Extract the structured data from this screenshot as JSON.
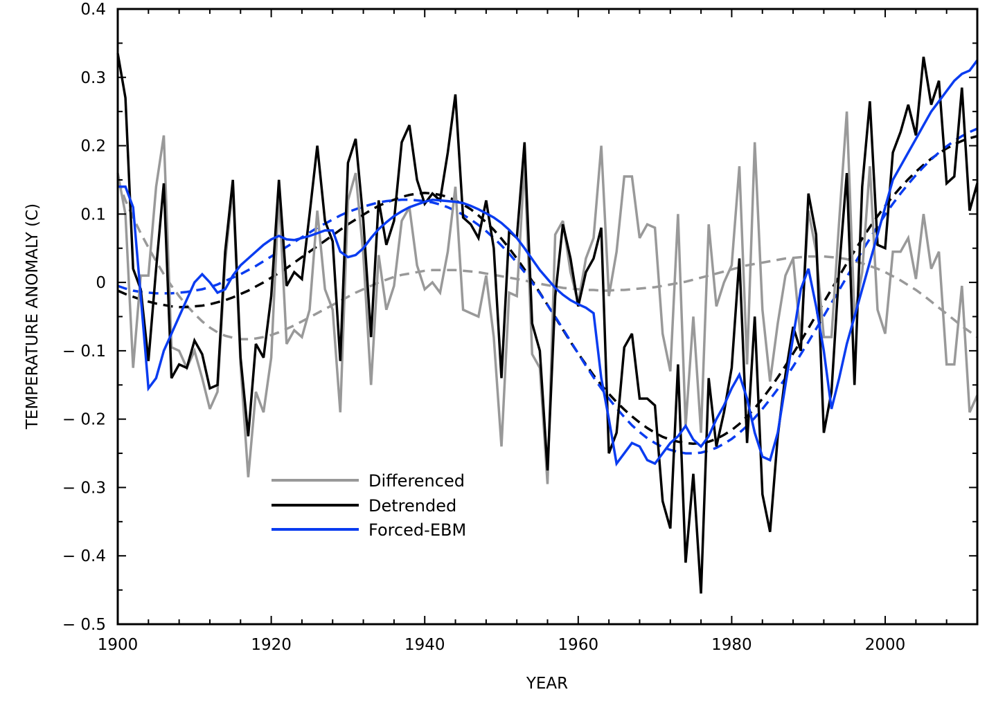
{
  "chart_data": {
    "type": "line",
    "title": "",
    "xlabel": "YEAR",
    "ylabel": "TEMPERATURE ANOMALY (C)",
    "xlim": [
      1900,
      2012
    ],
    "ylim": [
      -0.5,
      0.4
    ],
    "grid": false,
    "legend_position": "lower-left",
    "x_ticks": [
      1900,
      1920,
      1940,
      1960,
      1980,
      2000
    ],
    "x_tick_labels": [
      "1900",
      "1920",
      "1940",
      "1960",
      "1980",
      "2000"
    ],
    "y_ticks": [
      0.4,
      0.3,
      0.2,
      0.1,
      0,
      -0.1,
      -0.2,
      -0.3,
      -0.4,
      -0.5
    ],
    "y_tick_labels": [
      "0.4",
      "0.3",
      "0.2",
      "0.1",
      "0",
      "− 0.1",
      "− 0.2",
      "− 0.3",
      "− 0.4",
      "− 0.5"
    ],
    "x": [
      1900,
      1901,
      1902,
      1903,
      1904,
      1905,
      1906,
      1907,
      1908,
      1909,
      1910,
      1911,
      1912,
      1913,
      1914,
      1915,
      1916,
      1917,
      1918,
      1919,
      1920,
      1921,
      1922,
      1923,
      1924,
      1925,
      1926,
      1927,
      1928,
      1929,
      1930,
      1931,
      1932,
      1933,
      1934,
      1935,
      1936,
      1937,
      1938,
      1939,
      1940,
      1941,
      1942,
      1943,
      1944,
      1945,
      1946,
      1947,
      1948,
      1949,
      1950,
      1951,
      1952,
      1953,
      1954,
      1955,
      1956,
      1957,
      1958,
      1959,
      1960,
      1961,
      1962,
      1963,
      1964,
      1965,
      1966,
      1967,
      1968,
      1969,
      1970,
      1971,
      1972,
      1973,
      1974,
      1975,
      1976,
      1977,
      1978,
      1979,
      1980,
      1981,
      1982,
      1983,
      1984,
      1985,
      1986,
      1987,
      1988,
      1989,
      1990,
      1991,
      1992,
      1993,
      1994,
      1995,
      1996,
      1997,
      1998,
      1999,
      2000,
      2001,
      2002,
      2003,
      2004,
      2005,
      2006,
      2007,
      2008,
      2009,
      2010,
      2011,
      2012
    ],
    "series": [
      {
        "name": "Differenced",
        "color": "#999999",
        "style": "solid",
        "in_legend": true,
        "values": [
          0.16,
          0.1,
          -0.125,
          0.01,
          0.01,
          0.14,
          0.215,
          -0.095,
          -0.1,
          -0.125,
          -0.1,
          -0.14,
          -0.185,
          -0.16,
          0.03,
          0.14,
          -0.12,
          -0.285,
          -0.16,
          -0.19,
          -0.11,
          0.13,
          -0.09,
          -0.07,
          -0.08,
          -0.04,
          0.105,
          -0.01,
          -0.04,
          -0.19,
          0.12,
          0.16,
          0.04,
          -0.15,
          0.04,
          -0.04,
          -0.005,
          0.09,
          0.11,
          0.025,
          -0.01,
          0.0,
          -0.015,
          0.045,
          0.14,
          -0.04,
          -0.045,
          -0.05,
          0.01,
          -0.08,
          -0.24,
          -0.015,
          -0.02,
          0.175,
          -0.105,
          -0.125,
          -0.295,
          0.07,
          0.09,
          0.015,
          -0.03,
          0.035,
          0.065,
          0.2,
          -0.02,
          0.045,
          0.155,
          0.155,
          0.065,
          0.085,
          0.08,
          -0.075,
          -0.13,
          0.1,
          -0.21,
          -0.05,
          -0.22,
          0.085,
          -0.035,
          0.0,
          0.025,
          0.17,
          -0.12,
          0.205,
          -0.04,
          -0.145,
          -0.06,
          0.01,
          0.035,
          -0.085,
          0.105,
          0.045,
          -0.08,
          -0.08,
          0.09,
          0.25,
          -0.05,
          0.015,
          0.17,
          -0.04,
          -0.075,
          0.045,
          0.045,
          0.065,
          0.005,
          0.1,
          0.02,
          0.045,
          -0.12,
          -0.12,
          -0.005,
          -0.19,
          -0.165
        ]
      },
      {
        "name": "Detrended",
        "color": "#000000",
        "style": "solid",
        "in_legend": true,
        "values": [
          0.335,
          0.27,
          0.02,
          -0.01,
          -0.115,
          0.02,
          0.145,
          -0.14,
          -0.12,
          -0.125,
          -0.085,
          -0.105,
          -0.155,
          -0.15,
          0.045,
          0.15,
          -0.11,
          -0.225,
          -0.09,
          -0.11,
          -0.02,
          0.15,
          -0.005,
          0.015,
          0.005,
          0.1,
          0.2,
          0.09,
          0.06,
          -0.115,
          0.175,
          0.21,
          0.09,
          -0.08,
          0.12,
          0.055,
          0.09,
          0.205,
          0.23,
          0.15,
          0.115,
          0.13,
          0.12,
          0.19,
          0.275,
          0.095,
          0.085,
          0.065,
          0.12,
          0.05,
          -0.14,
          0.075,
          0.065,
          0.205,
          -0.06,
          -0.1,
          -0.275,
          -0.02,
          0.085,
          0.035,
          -0.035,
          0.015,
          0.035,
          0.08,
          -0.25,
          -0.22,
          -0.095,
          -0.075,
          -0.17,
          -0.17,
          -0.18,
          -0.32,
          -0.36,
          -0.12,
          -0.41,
          -0.28,
          -0.455,
          -0.14,
          -0.24,
          -0.19,
          -0.125,
          0.035,
          -0.235,
          -0.05,
          -0.31,
          -0.365,
          -0.225,
          -0.135,
          -0.065,
          -0.1,
          0.13,
          0.07,
          -0.22,
          -0.16,
          0.02,
          0.16,
          -0.15,
          0.14,
          0.265,
          0.055,
          0.05,
          0.19,
          0.22,
          0.26,
          0.215,
          0.33,
          0.26,
          0.295,
          0.145,
          0.155,
          0.285,
          0.105,
          0.145
        ]
      },
      {
        "name": "Forced-EBM",
        "color": "#0a3cf0",
        "style": "solid",
        "in_legend": true,
        "values": [
          0.14,
          0.14,
          0.11,
          -0.02,
          -0.155,
          -0.14,
          -0.1,
          -0.075,
          -0.05,
          -0.025,
          0.0,
          0.012,
          0.0,
          -0.015,
          -0.01,
          0.01,
          0.025,
          0.035,
          0.045,
          0.055,
          0.063,
          0.068,
          0.063,
          0.062,
          0.065,
          0.068,
          0.072,
          0.076,
          0.076,
          0.045,
          0.037,
          0.04,
          0.05,
          0.065,
          0.078,
          0.088,
          0.097,
          0.104,
          0.11,
          0.114,
          0.118,
          0.121,
          0.12,
          0.119,
          0.118,
          0.116,
          0.112,
          0.107,
          0.101,
          0.095,
          0.087,
          0.077,
          0.065,
          0.05,
          0.034,
          0.018,
          0.005,
          -0.008,
          -0.018,
          -0.026,
          -0.032,
          -0.037,
          -0.045,
          -0.14,
          -0.2,
          -0.265,
          -0.25,
          -0.235,
          -0.24,
          -0.26,
          -0.265,
          -0.25,
          -0.235,
          -0.225,
          -0.21,
          -0.23,
          -0.24,
          -0.225,
          -0.2,
          -0.18,
          -0.155,
          -0.135,
          -0.17,
          -0.22,
          -0.255,
          -0.26,
          -0.22,
          -0.15,
          -0.08,
          -0.01,
          0.02,
          -0.035,
          -0.1,
          -0.185,
          -0.14,
          -0.09,
          -0.05,
          -0.01,
          0.03,
          0.07,
          0.11,
          0.15,
          0.17,
          0.19,
          0.21,
          0.23,
          0.25,
          0.265,
          0.28,
          0.295,
          0.305,
          0.31,
          0.325
        ]
      },
      {
        "name": "Differenced (smoothed)",
        "color": "#999999",
        "style": "dashed",
        "in_legend": false,
        "values": [
          0.15,
          0.12,
          0.095,
          0.072,
          0.051,
          0.031,
          0.012,
          -0.005,
          -0.02,
          -0.034,
          -0.046,
          -0.057,
          -0.066,
          -0.073,
          -0.078,
          -0.081,
          -0.083,
          -0.083,
          -0.082,
          -0.08,
          -0.077,
          -0.073,
          -0.068,
          -0.063,
          -0.057,
          -0.051,
          -0.045,
          -0.039,
          -0.033,
          -0.027,
          -0.021,
          -0.015,
          -0.01,
          -0.005,
          0.0,
          0.004,
          0.008,
          0.011,
          0.013,
          0.015,
          0.017,
          0.018,
          0.018,
          0.018,
          0.018,
          0.017,
          0.016,
          0.015,
          0.013,
          0.011,
          0.009,
          0.007,
          0.005,
          0.003,
          0.0,
          -0.002,
          -0.004,
          -0.006,
          -0.008,
          -0.009,
          -0.01,
          -0.011,
          -0.011,
          -0.012,
          -0.012,
          -0.011,
          -0.011,
          -0.01,
          -0.009,
          -0.008,
          -0.007,
          -0.005,
          -0.003,
          -0.001,
          0.001,
          0.004,
          0.007,
          0.01,
          0.013,
          0.016,
          0.019,
          0.022,
          0.025,
          0.027,
          0.029,
          0.031,
          0.033,
          0.035,
          0.036,
          0.037,
          0.038,
          0.038,
          0.038,
          0.037,
          0.036,
          0.034,
          0.031,
          0.028,
          0.024,
          0.02,
          0.015,
          0.009,
          0.003,
          -0.004,
          -0.011,
          -0.019,
          -0.028,
          -0.037,
          -0.046,
          -0.055,
          -0.064,
          -0.072,
          -0.08
        ]
      },
      {
        "name": "Detrended (smoothed)",
        "color": "#000000",
        "style": "dashed",
        "in_legend": false,
        "values": [
          -0.012,
          -0.017,
          -0.021,
          -0.025,
          -0.028,
          -0.031,
          -0.033,
          -0.035,
          -0.036,
          -0.036,
          -0.035,
          -0.034,
          -0.032,
          -0.029,
          -0.026,
          -0.022,
          -0.017,
          -0.012,
          -0.006,
          0.0,
          0.007,
          0.014,
          0.021,
          0.029,
          0.037,
          0.045,
          0.053,
          0.061,
          0.069,
          0.077,
          0.085,
          0.092,
          0.099,
          0.106,
          0.112,
          0.117,
          0.121,
          0.125,
          0.128,
          0.13,
          0.131,
          0.13,
          0.128,
          0.125,
          0.12,
          0.114,
          0.107,
          0.098,
          0.088,
          0.077,
          0.064,
          0.05,
          0.035,
          0.019,
          0.002,
          -0.015,
          -0.033,
          -0.051,
          -0.069,
          -0.087,
          -0.104,
          -0.12,
          -0.136,
          -0.15,
          -0.163,
          -0.175,
          -0.186,
          -0.196,
          -0.205,
          -0.213,
          -0.22,
          -0.226,
          -0.23,
          -0.233,
          -0.235,
          -0.236,
          -0.235,
          -0.233,
          -0.229,
          -0.223,
          -0.216,
          -0.207,
          -0.196,
          -0.184,
          -0.17,
          -0.155,
          -0.139,
          -0.122,
          -0.104,
          -0.086,
          -0.067,
          -0.048,
          -0.029,
          -0.01,
          0.009,
          0.028,
          0.046,
          0.064,
          0.081,
          0.097,
          0.112,
          0.126,
          0.139,
          0.151,
          0.162,
          0.172,
          0.181,
          0.189,
          0.196,
          0.202,
          0.207,
          0.211,
          0.214
        ]
      },
      {
        "name": "Forced-EBM (smoothed)",
        "color": "#0a3cf0",
        "style": "dashed",
        "in_legend": false,
        "values": [
          -0.005,
          -0.009,
          -0.012,
          -0.014,
          -0.015,
          -0.016,
          -0.016,
          -0.016,
          -0.015,
          -0.014,
          -0.012,
          -0.01,
          -0.007,
          -0.003,
          0.002,
          0.007,
          0.012,
          0.018,
          0.024,
          0.031,
          0.038,
          0.045,
          0.052,
          0.059,
          0.066,
          0.073,
          0.08,
          0.086,
          0.092,
          0.098,
          0.103,
          0.107,
          0.111,
          0.114,
          0.117,
          0.119,
          0.12,
          0.121,
          0.121,
          0.12,
          0.119,
          0.117,
          0.114,
          0.11,
          0.105,
          0.099,
          0.092,
          0.084,
          0.075,
          0.065,
          0.054,
          0.042,
          0.029,
          0.015,
          0.0,
          -0.016,
          -0.033,
          -0.05,
          -0.068,
          -0.086,
          -0.104,
          -0.122,
          -0.139,
          -0.155,
          -0.17,
          -0.184,
          -0.197,
          -0.209,
          -0.219,
          -0.228,
          -0.235,
          -0.241,
          -0.245,
          -0.248,
          -0.25,
          -0.25,
          -0.249,
          -0.246,
          -0.242,
          -0.236,
          -0.229,
          -0.22,
          -0.21,
          -0.198,
          -0.185,
          -0.171,
          -0.156,
          -0.14,
          -0.123,
          -0.105,
          -0.087,
          -0.068,
          -0.049,
          -0.03,
          -0.011,
          0.008,
          0.027,
          0.046,
          0.064,
          0.082,
          0.099,
          0.115,
          0.13,
          0.144,
          0.157,
          0.169,
          0.18,
          0.19,
          0.199,
          0.207,
          0.214,
          0.22,
          0.225
        ]
      }
    ]
  }
}
